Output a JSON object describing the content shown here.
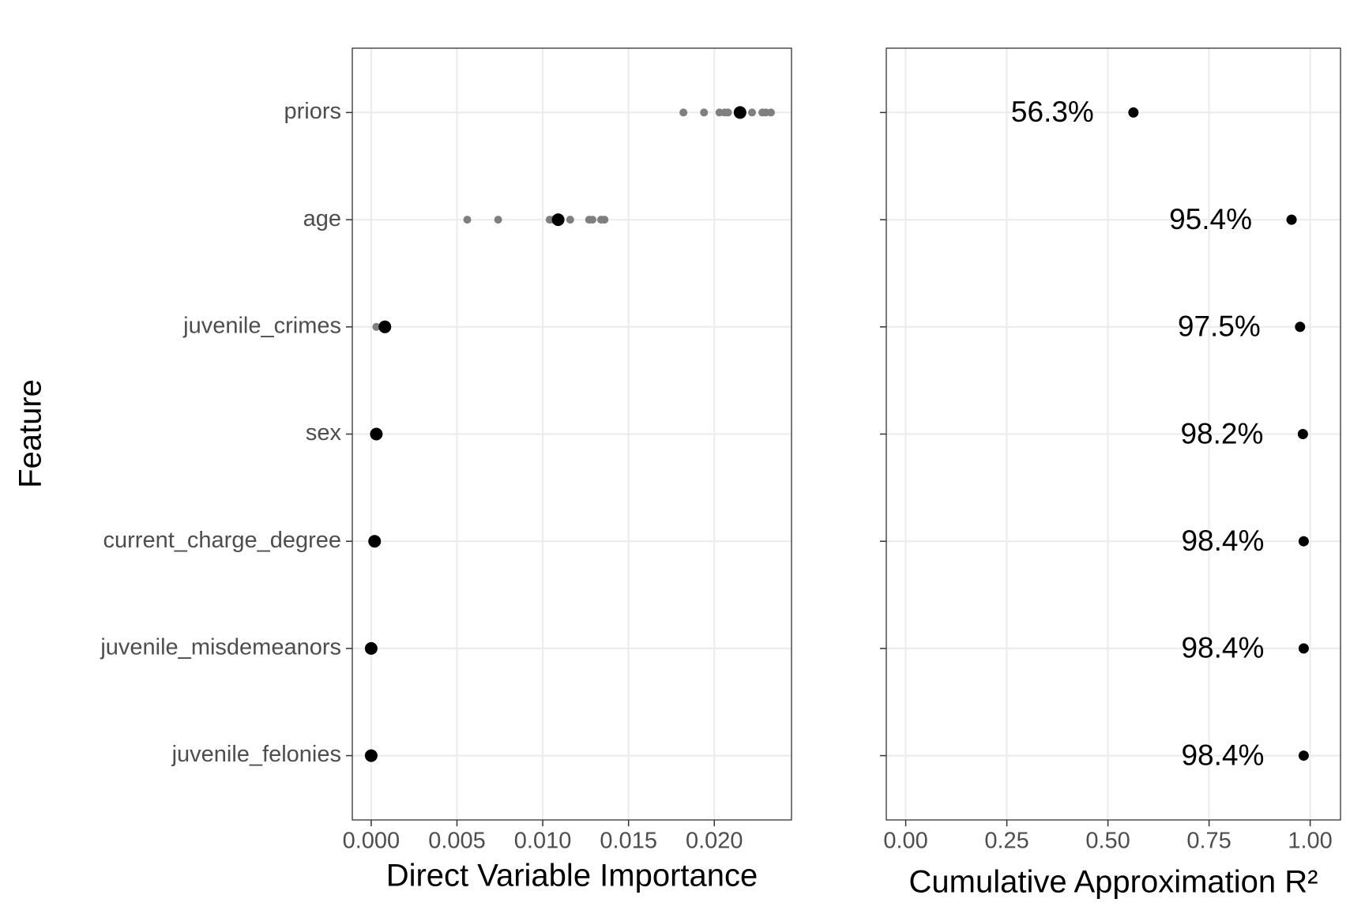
{
  "chart_data": [
    {
      "type": "dot",
      "xlabel": "Direct Variable Importance",
      "ylabel": "Feature",
      "categories": [
        "priors",
        "age",
        "juvenile_crimes",
        "sex",
        "current_charge_degree",
        "juvenile_misdemeanors",
        "juvenile_felonies"
      ],
      "values": [
        0.0215,
        0.0109,
        0.0008,
        0.0003,
        0.0002,
        0.0,
        0.0
      ],
      "color": "#000000",
      "replicates": [
        [
          0.0182,
          0.0194,
          0.0203,
          0.0206,
          0.0208,
          0.0222,
          0.0228,
          0.023,
          0.0233
        ],
        [
          0.0056,
          0.0074,
          0.0104,
          0.0106,
          0.0116,
          0.0127,
          0.0129,
          0.0134,
          0.0136
        ],
        [
          0.0003,
          0.0006,
          0.0009
        ],
        [],
        [],
        [],
        []
      ],
      "replicate_color": "#7f7f7f",
      "xlim": [
        -0.0011,
        0.0245
      ],
      "xticks": [
        {
          "value": 0,
          "label": "0.000"
        },
        {
          "value": 0.005,
          "label": "0.005"
        },
        {
          "value": 0.01,
          "label": "0.010"
        },
        {
          "value": 0.015,
          "label": "0.015"
        },
        {
          "value": 0.02,
          "label": "0.020"
        }
      ],
      "grid": true
    },
    {
      "type": "dot",
      "xlabel": "Cumulative Approximation R²",
      "values": [
        0.563,
        0.954,
        0.975,
        0.982,
        0.984,
        0.984,
        0.984
      ],
      "value_labels": [
        "56.3%",
        "95.4%",
        "97.5%",
        "98.2%",
        "98.4%",
        "98.4%",
        "98.4%"
      ],
      "color": "#000000",
      "xlim": [
        -0.048,
        1.075
      ],
      "xticks": [
        {
          "value": 0,
          "label": "0.00"
        },
        {
          "value": 0.25,
          "label": "0.25"
        },
        {
          "value": 0.5,
          "label": "0.50"
        },
        {
          "value": 0.75,
          "label": "0.75"
        },
        {
          "value": 1,
          "label": "1.00"
        }
      ],
      "grid": true
    }
  ]
}
